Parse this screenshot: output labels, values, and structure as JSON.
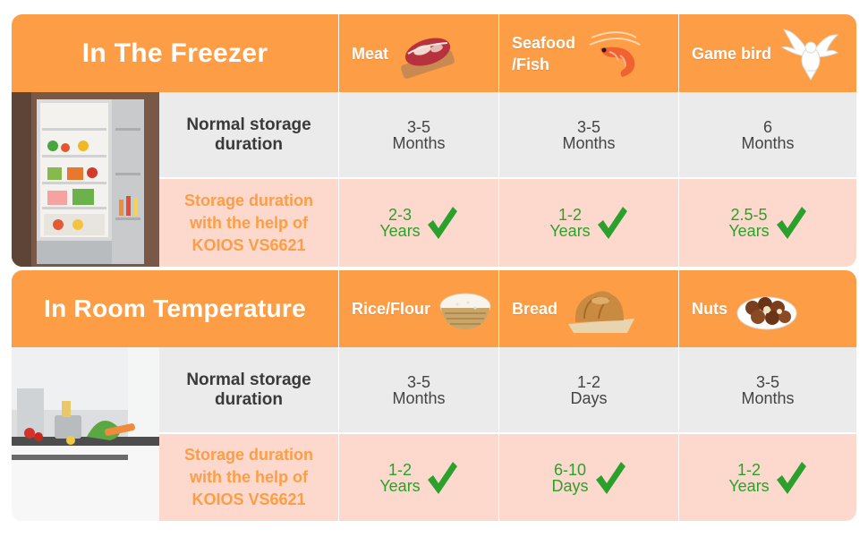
{
  "colors": {
    "accent": "#fd9e46",
    "pink_row": "#fdd8cd",
    "gray_row": "#ebebeb",
    "check_green": "#2ca02c"
  },
  "freezer": {
    "title": "In The Freezer",
    "normal_label": "Normal storage duration",
    "kolos_label_lines": [
      "Storage duration",
      "with the help of",
      "KOIOS VS6621"
    ],
    "columns": [
      {
        "name": "Meat",
        "icon": "meat-icon",
        "normal": [
          "3-5",
          "Months"
        ],
        "kolos": [
          "2-3",
          "Years"
        ]
      },
      {
        "name_lines": [
          "Seafood",
          "/Fish"
        ],
        "icon": "shrimp-icon",
        "normal": [
          "3-5",
          "Months"
        ],
        "kolos": [
          "1-2",
          "Years"
        ]
      },
      {
        "name": "Game bird",
        "icon": "bird-icon",
        "normal": [
          "6",
          "Months"
        ],
        "kolos": [
          "2.5-5",
          "Years"
        ]
      }
    ]
  },
  "room": {
    "title": "In Room Temperature",
    "normal_label": "Normal storage duration",
    "kolos_label_lines": [
      "Storage duration",
      "with the help of",
      "KOIOS VS6621"
    ],
    "columns": [
      {
        "name": "Rice/Flour",
        "icon": "rice-bowl-icon",
        "normal": [
          "3-5",
          "Months"
        ],
        "kolos": [
          "1-2",
          "Years"
        ]
      },
      {
        "name": "Bread",
        "icon": "bread-icon",
        "normal": [
          "1-2",
          "Days"
        ],
        "kolos": [
          "6-10",
          "Days"
        ]
      },
      {
        "name": "Nuts",
        "icon": "nuts-icon",
        "normal": [
          "3-5",
          "Months"
        ],
        "kolos": [
          "1-2",
          "Years"
        ]
      }
    ]
  }
}
